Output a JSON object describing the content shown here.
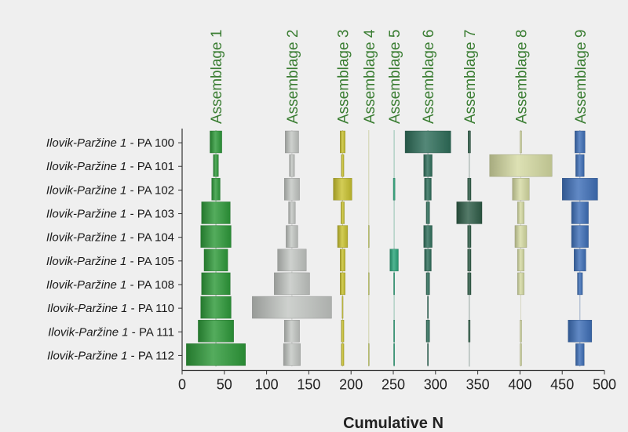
{
  "chart_data": {
    "type": "bar",
    "subtype": "battleship",
    "xlabel": "Cumulative N",
    "xlim": [
      0,
      500
    ],
    "xticks": [
      0,
      50,
      100,
      150,
      200,
      250,
      300,
      350,
      400,
      450,
      500
    ],
    "grid": false,
    "categories": [
      {
        "site": "Ilovik-Paržine 1",
        "pa": "PA 100"
      },
      {
        "site": "Ilovik-Paržine 1",
        "pa": "PA 101"
      },
      {
        "site": "Ilovik-Paržine 1",
        "pa": "PA 102"
      },
      {
        "site": "Ilovik-Paržine 1",
        "pa": "PA 103"
      },
      {
        "site": "Ilovik-Paržine 1",
        "pa": "PA 104"
      },
      {
        "site": "Ilovik-Paržine 1",
        "pa": "PA 105"
      },
      {
        "site": "Ilovik-Paržine 1",
        "pa": "PA 108"
      },
      {
        "site": "Ilovik-Paržine 1",
        "pa": "PA 110"
      },
      {
        "site": "Ilovik-Paržine 1",
        "pa": "PA 111"
      },
      {
        "site": "Ilovik-Paržine 1",
        "pa": "PA 112"
      }
    ],
    "series": [
      {
        "name": "Assemblage 1",
        "center": 40,
        "color": "#2e9a3a",
        "values": [
          14,
          6,
          10,
          34,
          36,
          28,
          34,
          36,
          42,
          70
        ]
      },
      {
        "name": "Assemblage 2",
        "center": 130,
        "color": "#c3c7c3",
        "values": [
          16,
          6,
          18,
          8,
          14,
          34,
          42,
          94,
          18,
          20
        ]
      },
      {
        "name": "Assemblage 3",
        "center": 190,
        "color": "#c9c230",
        "values": [
          6,
          3,
          22,
          4,
          12,
          6,
          6,
          1,
          3,
          3
        ]
      },
      {
        "name": "Assemblage 4",
        "center": 221,
        "color": "#c8cf6a",
        "values": [
          0,
          0,
          0,
          0,
          1,
          0,
          1,
          0,
          0,
          1
        ]
      },
      {
        "name": "Assemblage 5",
        "center": 251,
        "color": "#2aa57a",
        "values": [
          0,
          0,
          2,
          0,
          0,
          10,
          1,
          0,
          1,
          1
        ]
      },
      {
        "name": "Assemblage 6",
        "center": 291,
        "color": "#2f6e5a",
        "values": [
          54,
          10,
          8,
          4,
          10,
          8,
          4,
          1,
          4,
          1
        ]
      },
      {
        "name": "Assemblage 7",
        "center": 340,
        "color": "#2f5d48",
        "values": [
          3,
          0,
          4,
          30,
          4,
          4,
          4,
          0,
          2,
          0
        ]
      },
      {
        "name": "Assemblage 8",
        "center": 401,
        "color": "#d6dba3",
        "values": [
          2,
          74,
          20,
          8,
          14,
          8,
          8,
          0,
          2,
          2
        ]
      },
      {
        "name": "Assemblage 9",
        "center": 471,
        "color": "#3e6fb8",
        "values": [
          12,
          10,
          42,
          20,
          20,
          14,
          6,
          0,
          28,
          10
        ]
      }
    ]
  }
}
